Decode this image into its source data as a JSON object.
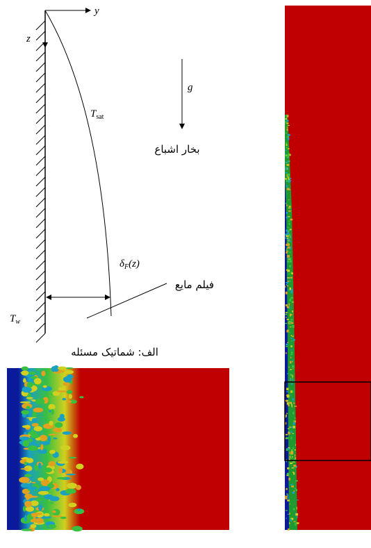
{
  "schematic": {
    "axis_y": "y",
    "axis_z": "z",
    "gravity": "g",
    "saturation_temperature": {
      "symbol": "T",
      "subscript": "sat"
    },
    "vapor_label": "بخار اشباع",
    "film_thickness": {
      "symbol": "δ",
      "subscript": "F",
      "argument": "(z)"
    },
    "liquid_label": "فیلم مایع",
    "wall_temperature": {
      "symbol": "T",
      "subscript": "w"
    },
    "caption": "الف: شماتیک مسئله"
  }
}
